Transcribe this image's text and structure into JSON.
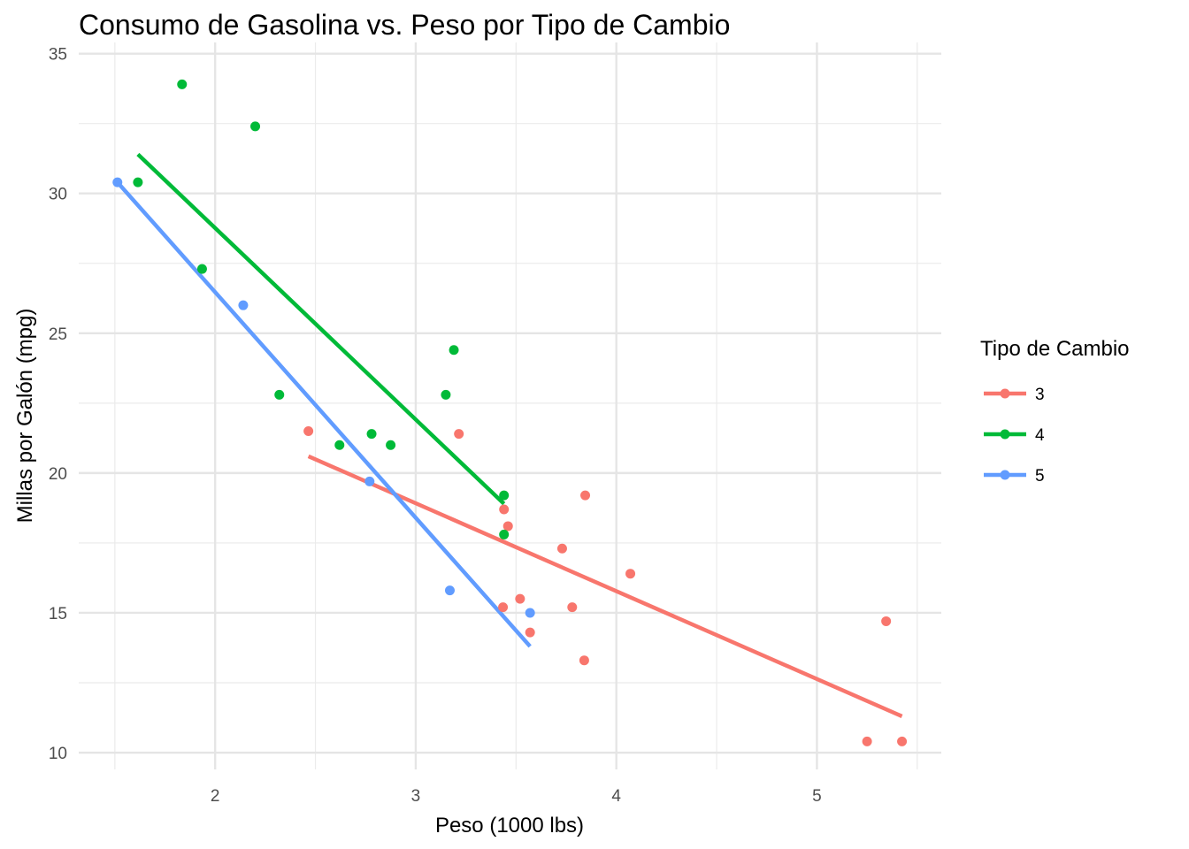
{
  "chart_data": {
    "type": "scatter",
    "title": "Consumo de Gasolina vs. Peso por Tipo de Cambio",
    "xlabel": "Peso (1000 lbs)",
    "ylabel": "Millas por Galón (mpg)",
    "xlim": [
      1.32,
      5.62
    ],
    "ylim": [
      9.4,
      35.4
    ],
    "xticks": [
      2,
      3,
      4,
      5
    ],
    "yticks": [
      10,
      15,
      20,
      25,
      30,
      35
    ],
    "grid": true,
    "legend": {
      "title": "Tipo de Cambio",
      "position": "right"
    },
    "series": [
      {
        "name": "3",
        "color": "#F8766D",
        "points": [
          [
            2.465,
            21.5
          ],
          [
            3.215,
            21.4
          ],
          [
            3.44,
            18.7
          ],
          [
            3.46,
            18.1
          ],
          [
            3.57,
            14.3
          ],
          [
            3.73,
            17.3
          ],
          [
            3.78,
            15.2
          ],
          [
            4.07,
            16.4
          ],
          [
            5.25,
            10.4
          ],
          [
            5.424,
            10.4
          ],
          [
            5.345,
            14.7
          ],
          [
            3.52,
            15.5
          ],
          [
            3.435,
            15.2
          ],
          [
            3.84,
            13.3
          ],
          [
            3.845,
            19.2
          ]
        ],
        "fit": {
          "x": [
            2.465,
            5.424
          ],
          "y": [
            20.6,
            11.3
          ]
        }
      },
      {
        "name": "4",
        "color": "#00BA38",
        "points": [
          [
            2.62,
            21.0
          ],
          [
            2.875,
            21.0
          ],
          [
            2.32,
            22.8
          ],
          [
            3.19,
            24.4
          ],
          [
            3.15,
            22.8
          ],
          [
            3.44,
            19.2
          ],
          [
            3.44,
            17.8
          ],
          [
            2.2,
            32.4
          ],
          [
            1.615,
            30.4
          ],
          [
            1.835,
            33.9
          ],
          [
            1.935,
            27.3
          ],
          [
            2.78,
            21.4
          ]
        ],
        "fit": {
          "x": [
            1.615,
            3.44
          ],
          "y": [
            31.4,
            18.9
          ]
        }
      },
      {
        "name": "5",
        "color": "#619CFF",
        "points": [
          [
            2.14,
            26.0
          ],
          [
            1.513,
            30.4
          ],
          [
            3.17,
            15.8
          ],
          [
            2.77,
            19.7
          ],
          [
            3.57,
            15.0
          ]
        ],
        "fit": {
          "x": [
            1.513,
            3.57
          ],
          "y": [
            30.4,
            13.8
          ]
        }
      }
    ]
  }
}
